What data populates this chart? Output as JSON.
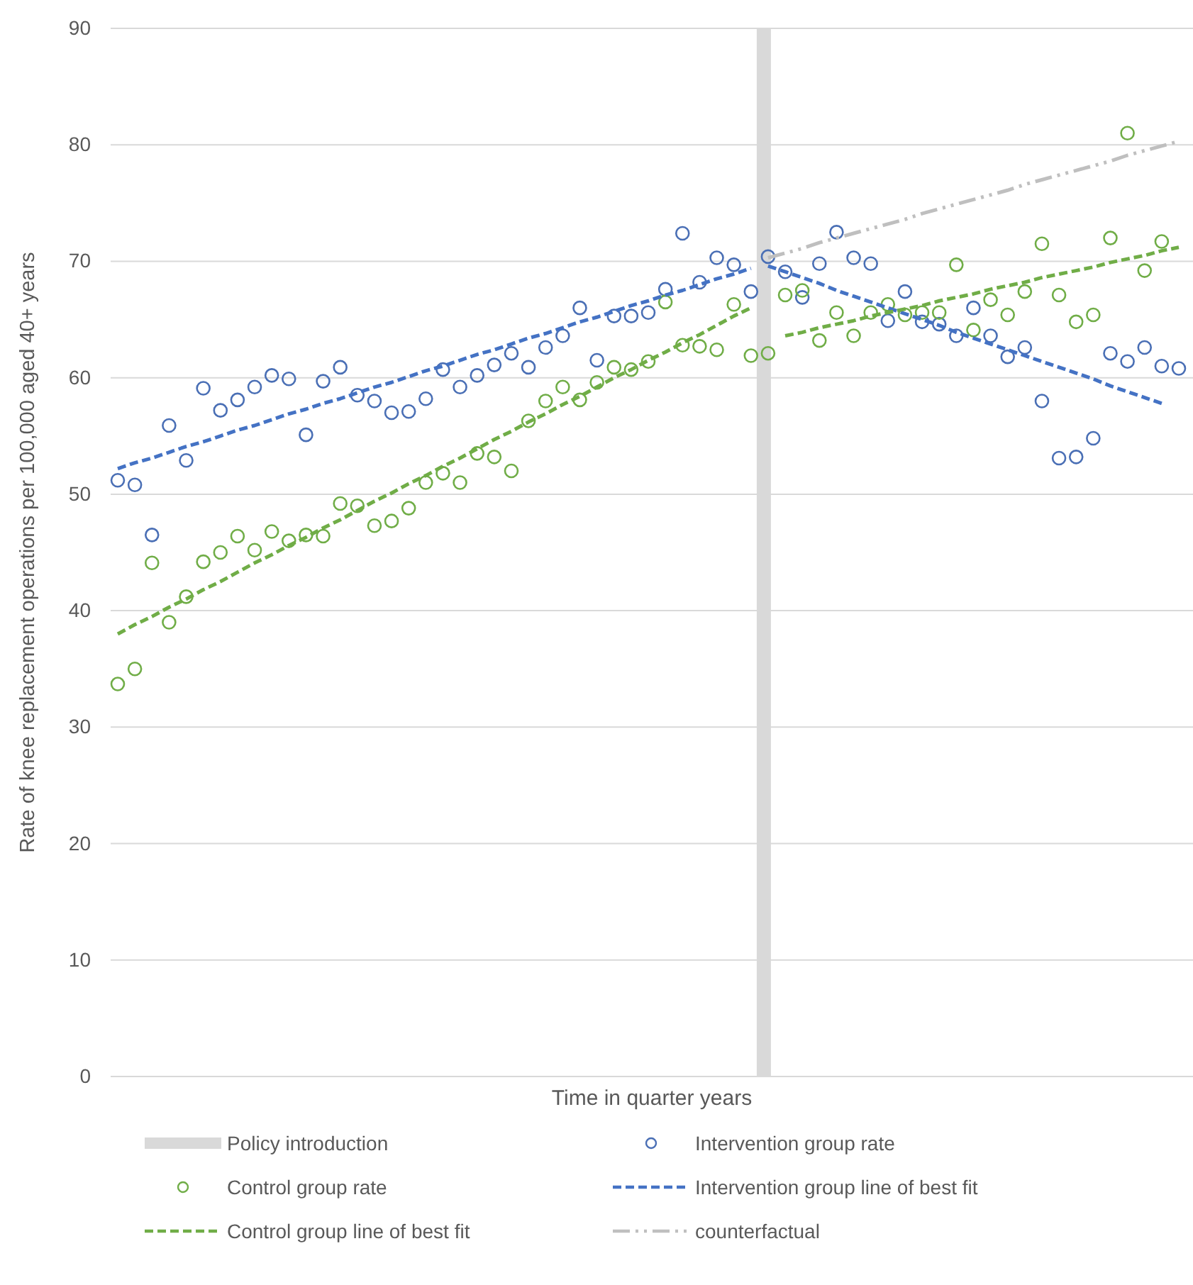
{
  "chart_data": {
    "type": "scatter",
    "xlabel": "Time in quarter years",
    "ylabel": "Rate of knee replacement operations per 100,000 aged 40+ years",
    "categories": [
      null,
      null,
      null,
      null,
      null,
      null,
      null,
      null,
      null,
      null,
      null,
      null,
      null,
      null,
      null,
      null,
      null,
      null,
      null,
      null,
      null,
      null,
      null,
      null,
      null,
      null,
      null,
      null,
      null,
      null,
      null,
      null,
      null,
      null,
      null,
      null,
      null,
      null,
      null,
      null,
      null,
      null,
      null,
      null,
      null,
      null,
      null,
      null,
      null,
      null,
      null,
      null,
      null,
      null,
      null,
      null,
      null,
      null,
      null,
      null,
      null,
      null,
      null
    ],
    "ylim": [
      0,
      90
    ],
    "yticks": [
      0,
      10,
      20,
      30,
      40,
      50,
      60,
      70,
      80,
      90
    ],
    "grid": "y",
    "legend": "bottom",
    "series": [
      {
        "name": "Policy introduction",
        "type": "bar",
        "color": "#d9d9d9",
        "values": [
          null,
          null,
          null,
          null,
          null,
          null,
          null,
          null,
          null,
          null,
          null,
          null,
          null,
          null,
          null,
          null,
          null,
          null,
          null,
          null,
          null,
          null,
          null,
          null,
          null,
          null,
          null,
          null,
          null,
          null,
          null,
          null,
          null,
          null,
          null,
          null,
          null,
          null,
          90,
          null,
          null,
          null,
          null,
          null,
          null,
          null,
          null,
          null,
          null,
          null,
          null,
          null,
          null,
          null,
          null,
          null,
          null,
          null,
          null,
          null,
          null,
          null,
          null
        ]
      },
      {
        "name": "Intervention group rate",
        "marker": "circle",
        "color": "#4a6fb5",
        "values": [
          51.2,
          50.8,
          46.5,
          55.9,
          52.9,
          59.1,
          57.2,
          58.1,
          59.2,
          60.2,
          59.9,
          55.1,
          59.7,
          60.9,
          58.5,
          58.0,
          57.0,
          57.1,
          58.2,
          60.7,
          59.2,
          60.2,
          61.1,
          62.1,
          60.9,
          62.6,
          63.6,
          66.0,
          61.5,
          65.3,
          65.3,
          65.6,
          67.6,
          72.4,
          68.2,
          70.3,
          69.7,
          67.4,
          70.4,
          69.1,
          66.9,
          69.8,
          72.5,
          70.3,
          69.8,
          64.9,
          67.4,
          64.8,
          64.6,
          63.6,
          66.0,
          63.6,
          61.8,
          62.6,
          58.0,
          53.1,
          53.2,
          54.8,
          62.1,
          61.4,
          62.6,
          61.0,
          60.8
        ]
      },
      {
        "name": "Control group rate",
        "marker": "circle",
        "color": "#70ad47",
        "values": [
          33.7,
          35.0,
          44.1,
          39.0,
          41.2,
          44.2,
          45.0,
          46.4,
          45.2,
          46.8,
          46.0,
          46.5,
          46.4,
          49.2,
          49.0,
          47.3,
          47.7,
          48.8,
          51.0,
          51.8,
          51.0,
          53.5,
          53.2,
          52.0,
          56.3,
          58.0,
          59.2,
          58.1,
          59.6,
          60.9,
          60.7,
          61.4,
          66.5,
          62.8,
          62.7,
          62.4,
          66.3,
          61.9,
          62.1,
          67.1,
          67.5,
          63.2,
          65.6,
          63.6,
          65.6,
          66.3,
          65.4,
          65.6,
          65.6,
          69.7,
          64.1,
          66.7,
          65.4,
          67.4,
          71.5,
          67.1,
          64.8,
          65.4,
          72.0,
          81.0,
          69.2,
          71.7,
          null
        ]
      },
      {
        "name": "Intervention group line of best fit",
        "type": "line",
        "line_style": "dashed",
        "color": "#4472c4",
        "values": [
          52.2,
          52.7,
          53.1,
          53.6,
          54.1,
          54.5,
          55.0,
          55.5,
          55.9,
          56.4,
          56.9,
          57.3,
          57.8,
          58.2,
          58.7,
          59.2,
          59.6,
          60.1,
          60.6,
          61.0,
          61.5,
          62.0,
          62.4,
          62.9,
          63.4,
          63.8,
          64.3,
          64.8,
          65.2,
          65.7,
          66.2,
          66.6,
          67.1,
          67.5,
          68.0,
          68.5,
          68.9,
          69.4,
          null,
          null,
          null,
          null,
          null,
          null,
          null,
          null,
          null,
          null,
          null,
          null,
          null,
          null,
          null,
          null,
          null,
          null,
          null,
          null,
          null,
          null,
          null,
          null,
          null
        ]
      },
      {
        "type": "line",
        "line_style": "dashed",
        "color": "#4472c4",
        "values": [
          null,
          null,
          null,
          null,
          null,
          null,
          null,
          null,
          null,
          null,
          null,
          null,
          null,
          null,
          null,
          null,
          null,
          null,
          null,
          null,
          null,
          null,
          null,
          null,
          null,
          null,
          null,
          null,
          null,
          null,
          null,
          null,
          null,
          null,
          null,
          null,
          null,
          null,
          69.6,
          69.1,
          68.6,
          68.1,
          67.5,
          67.0,
          66.5,
          66.0,
          65.5,
          65.0,
          64.5,
          63.9,
          63.4,
          62.9,
          62.4,
          61.9,
          61.4,
          60.9,
          60.4,
          59.9,
          59.3,
          58.8,
          58.3,
          57.8,
          null
        ]
      },
      {
        "name": "Control group line of best fit",
        "type": "line",
        "line_style": "dashed",
        "color": "#70ad47",
        "values": [
          38.0,
          38.8,
          39.5,
          40.3,
          41.0,
          41.8,
          42.5,
          43.3,
          44.1,
          44.8,
          45.6,
          46.3,
          47.1,
          47.8,
          48.6,
          49.4,
          50.1,
          50.9,
          51.6,
          52.4,
          53.1,
          53.9,
          54.7,
          55.4,
          56.2,
          56.9,
          57.7,
          58.4,
          59.2,
          60.0,
          60.7,
          61.5,
          62.2,
          63.0,
          63.7,
          64.5,
          65.3,
          66.0,
          null,
          null,
          null,
          null,
          null,
          null,
          null,
          null,
          null,
          null,
          null,
          null,
          null,
          null,
          null,
          null,
          null,
          null,
          null,
          null,
          null,
          null,
          null,
          null,
          null
        ]
      },
      {
        "type": "line",
        "line_style": "dashed",
        "color": "#70ad47",
        "values": [
          null,
          null,
          null,
          null,
          null,
          null,
          null,
          null,
          null,
          null,
          null,
          null,
          null,
          null,
          null,
          null,
          null,
          null,
          null,
          null,
          null,
          null,
          null,
          null,
          null,
          null,
          null,
          null,
          null,
          null,
          null,
          null,
          null,
          null,
          null,
          null,
          null,
          null,
          null,
          63.6,
          63.9,
          64.3,
          64.6,
          64.9,
          65.3,
          65.6,
          65.9,
          66.2,
          66.6,
          66.9,
          67.2,
          67.6,
          67.9,
          68.2,
          68.6,
          68.9,
          69.2,
          69.5,
          69.9,
          70.2,
          70.5,
          70.9,
          71.2
        ]
      },
      {
        "name": "counterfactual",
        "type": "line",
        "line_style": "dotted",
        "color": "#bfbfbf",
        "values": [
          null,
          null,
          null,
          null,
          null,
          null,
          null,
          null,
          null,
          null,
          null,
          null,
          null,
          null,
          null,
          null,
          null,
          null,
          null,
          null,
          null,
          null,
          null,
          null,
          null,
          null,
          null,
          null,
          null,
          null,
          null,
          null,
          null,
          null,
          null,
          null,
          null,
          null,
          70.3,
          70.7,
          71.1,
          71.6,
          72.0,
          72.4,
          72.8,
          73.2,
          73.6,
          74.1,
          74.5,
          74.9,
          75.3,
          75.7,
          76.1,
          76.6,
          77.0,
          77.4,
          77.8,
          78.2,
          78.6,
          79.1,
          79.5,
          79.9,
          80.3
        ]
      }
    ]
  }
}
